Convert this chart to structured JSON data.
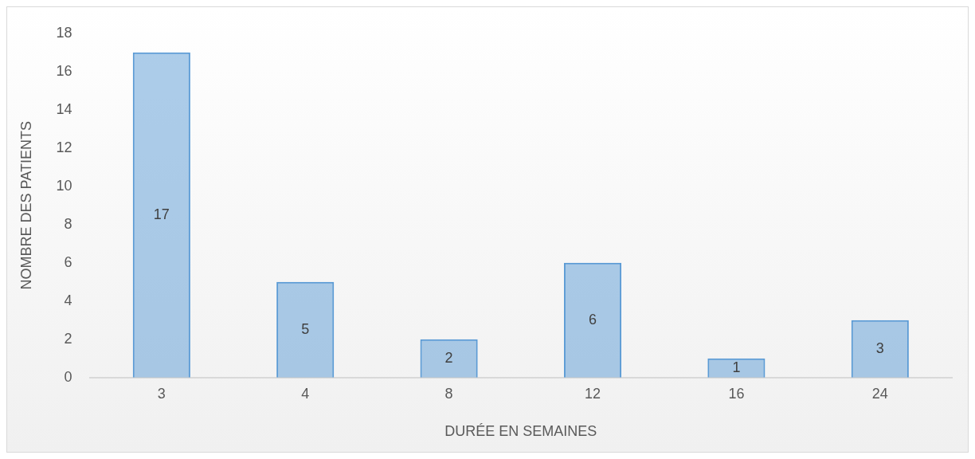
{
  "chart_data": {
    "type": "bar",
    "xlabel": "DURÉE EN SEMAINES",
    "ylabel": "NOMBRE DES PATIENTS",
    "categories": [
      "3",
      "4",
      "8",
      "12",
      "16",
      "24"
    ],
    "values": [
      17,
      5,
      2,
      6,
      1,
      3
    ],
    "color": "#5b9bd5",
    "ylim": [
      0,
      18
    ],
    "yticks": [
      0,
      2,
      4,
      6,
      8,
      10,
      12,
      14,
      16,
      18
    ],
    "grid": false,
    "data_labels": true
  }
}
